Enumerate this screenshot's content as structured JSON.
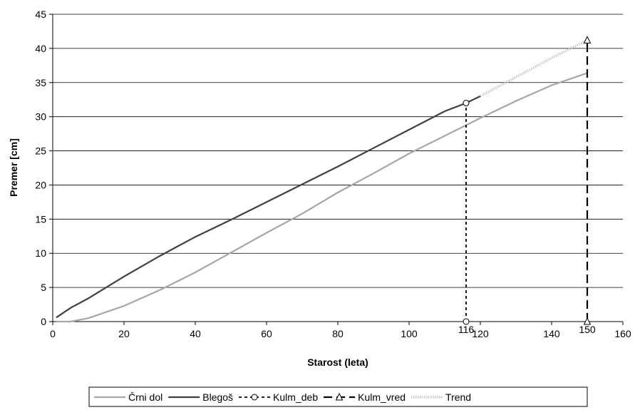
{
  "chart_data": {
    "type": "line",
    "xlabel": "Starost (leta)",
    "ylabel": "Premer [cm]",
    "xlim": [
      0,
      160
    ],
    "ylim": [
      0,
      45
    ],
    "x_ticks": [
      0,
      20,
      40,
      60,
      80,
      100,
      120,
      140,
      160
    ],
    "y_ticks": [
      0,
      5,
      10,
      15,
      20,
      25,
      30,
      35,
      40,
      45
    ],
    "grid": "horizontal",
    "legend_position": "bottom",
    "colors": {
      "crni_dol": "#a6a6a6",
      "blegos": "#404040",
      "kulm_deb": "#000000",
      "kulm_vred": "#000000",
      "trend": "#c8c8c8"
    },
    "series": [
      {
        "name": "Črni dol",
        "x": [
          1,
          5,
          10,
          20,
          30,
          40,
          50,
          60,
          70,
          80,
          90,
          100,
          110,
          120,
          130,
          140,
          150
        ],
        "y": [
          0,
          0,
          0.5,
          2.3,
          4.6,
          7.2,
          10.1,
          13.0,
          15.8,
          18.9,
          21.7,
          24.6,
          27.2,
          29.8,
          32.3,
          34.6,
          36.4
        ]
      },
      {
        "name": "Blegoš",
        "x": [
          1,
          5,
          10,
          20,
          30,
          40,
          50,
          60,
          70,
          80,
          90,
          100,
          110,
          116,
          120
        ],
        "y": [
          0.6,
          2.0,
          3.4,
          6.6,
          9.6,
          12.4,
          14.9,
          17.5,
          20.1,
          22.7,
          25.4,
          28.1,
          30.8,
          32.0,
          33.0
        ]
      },
      {
        "name": "Kulm_deb",
        "x": [
          116,
          116
        ],
        "y": [
          0,
          32.0
        ]
      },
      {
        "name": "Kulm_vred",
        "x": [
          150,
          150
        ],
        "y": [
          0,
          41.2
        ]
      },
      {
        "name": "Trend",
        "x": [
          120,
          130,
          140,
          150
        ],
        "y": [
          33.0,
          35.8,
          38.6,
          41.2
        ]
      }
    ],
    "annotations": [
      {
        "text": "116",
        "x": 116
      },
      {
        "text": "150",
        "x": 150
      }
    ]
  }
}
